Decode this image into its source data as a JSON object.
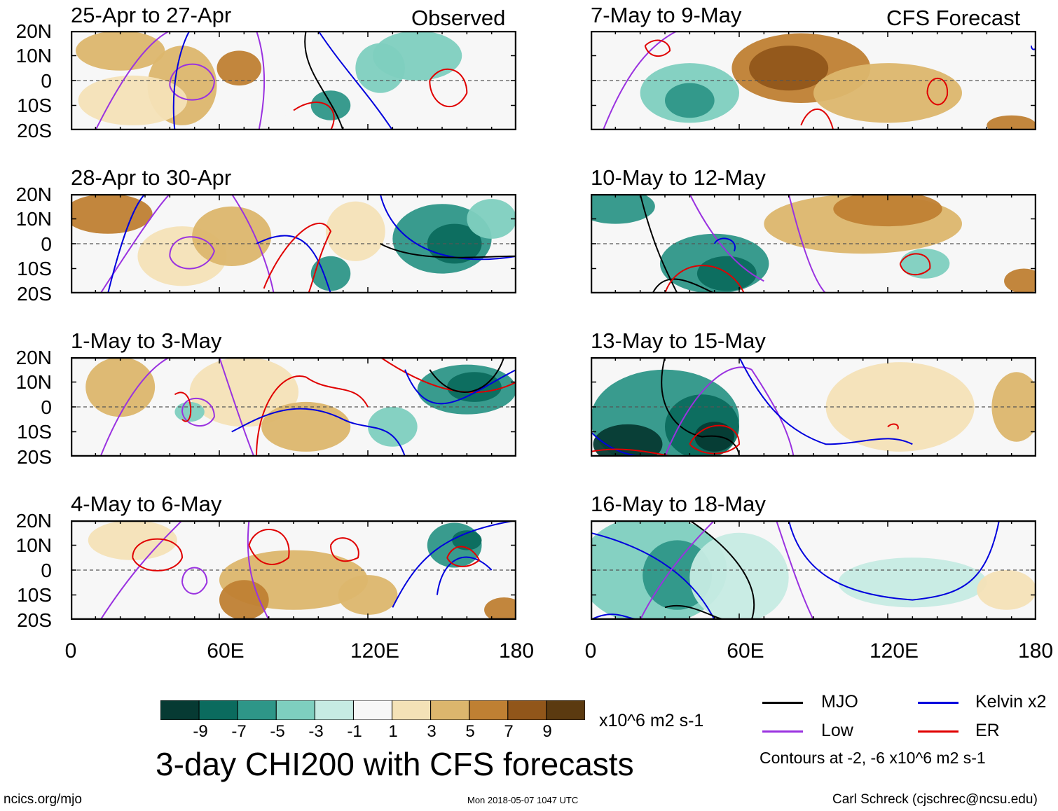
{
  "chart_data": {
    "type": "heatmap",
    "title": "3-day CHI200 with CFS forecasts",
    "units": "x10^6 m2 s-1",
    "observed_label": "Observed",
    "forecast_label": "CFS Forecast",
    "lat_ticks": [
      "20N",
      "10N",
      "0",
      "10S",
      "20S"
    ],
    "lon_ticks": [
      "0",
      "60E",
      "120E",
      "180"
    ],
    "lon_range": [
      0,
      180
    ],
    "lat_range": [
      -20,
      20
    ],
    "colorbar": {
      "labels": [
        "-9",
        "-7",
        "-5",
        "-3",
        "-1",
        "1",
        "3",
        "5",
        "7",
        "9"
      ],
      "colors": [
        "#063a33",
        "#0b6b5e",
        "#2e9688",
        "#7ecfbf",
        "#c6ebe3",
        "#f7f7f7",
        "#f4e2b7",
        "#dcb66d",
        "#bf8033",
        "#91561a",
        "#5b3a10"
      ]
    },
    "panels": [
      {
        "period": "25-Apr to 27-Apr",
        "column": "observed"
      },
      {
        "period": "28-Apr to 30-Apr",
        "column": "observed"
      },
      {
        "period": "1-May to 3-May",
        "column": "observed"
      },
      {
        "period": "4-May to 6-May",
        "column": "observed"
      },
      {
        "period": "7-May to 9-May",
        "column": "forecast"
      },
      {
        "period": "10-May to 12-May",
        "column": "forecast"
      },
      {
        "period": "13-May to 15-May",
        "column": "forecast"
      },
      {
        "period": "16-May to 18-May",
        "column": "forecast"
      }
    ],
    "legend": {
      "items": [
        {
          "label": "MJO",
          "color": "#000000"
        },
        {
          "label": "Kelvin x2",
          "color": "#0000dd"
        },
        {
          "label": "Low",
          "color": "#9a32e0"
        },
        {
          "label": "ER",
          "color": "#e00000"
        }
      ],
      "contour_note": "Contours at -2, -6 x10^6 m2 s-1"
    }
  },
  "footer": {
    "left": "ncics.org/mjo",
    "center": "Mon 2018-05-07 1047 UTC",
    "right": "Carl Schreck (cjschrec@ncsu.edu)"
  }
}
